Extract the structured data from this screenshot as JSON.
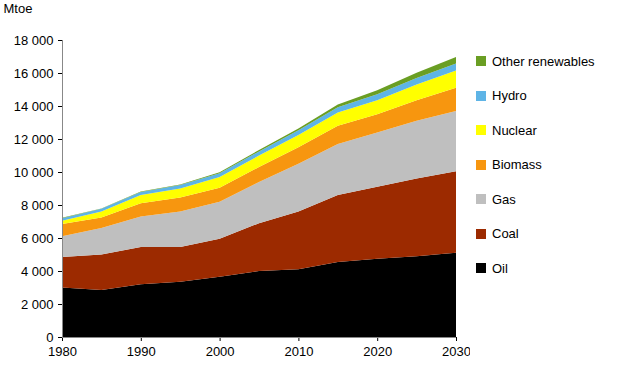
{
  "chart_data": {
    "type": "area",
    "stacked": true,
    "grid": false,
    "legend": "right",
    "y_label": "Mtoe",
    "x": [
      1980,
      1985,
      1990,
      1995,
      2000,
      2005,
      2010,
      2015,
      2020,
      2025,
      2030
    ],
    "xlim": [
      1980,
      2030
    ],
    "xticks": [
      1980,
      1990,
      2000,
      2010,
      2020,
      2030
    ],
    "ylim": [
      0,
      18000
    ],
    "yticks": [
      0,
      {
        "value": 2000,
        "label": "2 000"
      },
      {
        "value": 4000,
        "label": "4 000"
      },
      {
        "value": 6000,
        "label": "6 000"
      },
      {
        "value": 8000,
        "label": "8 000"
      },
      {
        "value": 10000,
        "label": "10 000"
      },
      {
        "value": 12000,
        "label": "12 000"
      },
      {
        "value": 14000,
        "label": "14 000"
      },
      {
        "value": 16000,
        "label": "16 000"
      },
      {
        "value": 18000,
        "label": "18 000"
      }
    ],
    "series": [
      {
        "name": "Oil",
        "color": "#000000",
        "values": [
          3000,
          2850,
          3200,
          3350,
          3650,
          4000,
          4100,
          4550,
          4750,
          4900,
          5100
        ]
      },
      {
        "name": "Coal",
        "color": "#9c2a00",
        "values": [
          1850,
          2150,
          2250,
          2100,
          2300,
          2900,
          3500,
          4050,
          4350,
          4700,
          4950
        ]
      },
      {
        "name": "Gas",
        "color": "#bfbfbf",
        "values": [
          1250,
          1600,
          1850,
          2150,
          2250,
          2500,
          2900,
          3100,
          3300,
          3500,
          3650
        ]
      },
      {
        "name": "Biomass",
        "color": "#f7960f",
        "values": [
          750,
          650,
          800,
          850,
          850,
          900,
          1000,
          1100,
          1100,
          1250,
          1400
        ]
      },
      {
        "name": "Nuclear",
        "color": "#ffff00",
        "values": [
          200,
          350,
          500,
          550,
          650,
          700,
          750,
          800,
          850,
          950,
          1050
        ]
      },
      {
        "name": "Hydro",
        "color": "#5eb4e6",
        "values": [
          150,
          170,
          190,
          210,
          230,
          250,
          280,
          320,
          360,
          390,
          420
        ]
      },
      {
        "name": "Other renewables",
        "color": "#6a9e23",
        "values": [
          20,
          25,
          35,
          40,
          60,
          80,
          110,
          170,
          250,
          320,
          400
        ]
      }
    ]
  }
}
